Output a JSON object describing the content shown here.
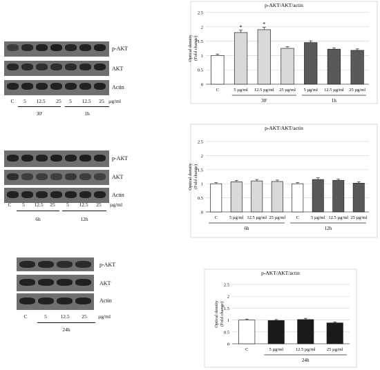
{
  "units": "µg/ml",
  "blots": [
    {
      "rows": [
        "p-AKT",
        "AKT",
        "Actin"
      ],
      "lanes": [
        "C",
        "5",
        "12.5",
        "25",
        "5",
        "12.5",
        "25"
      ],
      "groups": [
        "30'",
        "1h"
      ],
      "intensities": [
        [
          0.55,
          0.75,
          0.85,
          0.9,
          0.8,
          0.85,
          0.9
        ],
        [
          0.8,
          0.75,
          0.7,
          0.7,
          0.75,
          0.8,
          0.85
        ],
        [
          0.85,
          0.85,
          0.85,
          0.85,
          0.85,
          0.85,
          0.85
        ]
      ]
    },
    {
      "rows": [
        "p-AKT",
        "AKT",
        "Actin"
      ],
      "lanes": [
        "C",
        "5",
        "12.5",
        "25",
        "5",
        "12.5",
        "25"
      ],
      "groups": [
        "6h",
        "12h"
      ],
      "intensities": [
        [
          0.85,
          0.9,
          0.85,
          0.9,
          0.85,
          0.9,
          0.85
        ],
        [
          0.7,
          0.55,
          0.55,
          0.55,
          0.6,
          0.55,
          0.5
        ],
        [
          0.85,
          0.85,
          0.85,
          0.85,
          0.85,
          0.85,
          0.85
        ]
      ]
    },
    {
      "rows": [
        "p-AKT",
        "AKT",
        "Actin"
      ],
      "lanes": [
        "C",
        "5",
        "12.5",
        "25"
      ],
      "groups": [
        "24h"
      ],
      "intensities": [
        [
          0.8,
          0.8,
          0.75,
          0.75
        ],
        [
          0.85,
          0.85,
          0.85,
          0.85
        ],
        [
          0.85,
          0.85,
          0.85,
          0.85
        ]
      ]
    }
  ],
  "chart_data": [
    {
      "type": "bar",
      "title": "p-AKT/AKT/actin",
      "ylabel": "Optical density (Fold change)",
      "ylim": [
        0,
        2.5
      ],
      "yticks": [
        0,
        0.5,
        1,
        1.5,
        2,
        2.5
      ],
      "categories": [
        "C",
        "5 µg/ml",
        "12.5 µg/ml",
        "25 µg/ml",
        "5 µg/ml",
        "12.5 µg/ml",
        "25 µg/ml"
      ],
      "values": [
        1.0,
        1.8,
        1.9,
        1.25,
        1.45,
        1.22,
        1.18
      ],
      "errors": [
        0.05,
        0.08,
        0.08,
        0.06,
        0.06,
        0.05,
        0.05
      ],
      "fills": [
        "#ffffff",
        "#d9d9d9",
        "#d9d9d9",
        "#d9d9d9",
        "#595959",
        "#595959",
        "#595959"
      ],
      "significance": [
        "",
        "*",
        "*",
        "",
        "",
        "",
        ""
      ],
      "groups": [
        {
          "label": "30'",
          "from": 1,
          "to": 3
        },
        {
          "label": "1h",
          "from": 4,
          "to": 6
        }
      ],
      "grid": true
    },
    {
      "type": "bar",
      "title": "p-AKT/AKT/actin",
      "ylabel": "Optical density (Fold change)",
      "ylim": [
        0,
        2.5
      ],
      "yticks": [
        0,
        0.5,
        1,
        1.5,
        2,
        2.5
      ],
      "categories": [
        "C",
        "5 µg/ml",
        "12.5 µg/ml",
        "25 µg/ml",
        "C",
        "5 µg/ml",
        "12.5 µg/ml",
        "25 µg/ml"
      ],
      "values": [
        1.0,
        1.07,
        1.1,
        1.08,
        1.0,
        1.15,
        1.12,
        1.02
      ],
      "errors": [
        0.04,
        0.05,
        0.05,
        0.05,
        0.04,
        0.06,
        0.05,
        0.05
      ],
      "fills": [
        "#ffffff",
        "#d9d9d9",
        "#d9d9d9",
        "#d9d9d9",
        "#ffffff",
        "#595959",
        "#595959",
        "#595959"
      ],
      "significance": [
        "",
        "",
        "",
        "",
        "",
        "",
        "",
        ""
      ],
      "groups": [
        {
          "label": "6h",
          "from": 0,
          "to": 3
        },
        {
          "label": "12h",
          "from": 4,
          "to": 7
        }
      ],
      "grid": true
    },
    {
      "type": "bar",
      "title": "p-AKT/AKT/actin",
      "ylabel": "Optical density (Fold change)",
      "ylim": [
        0,
        2.5
      ],
      "yticks": [
        0,
        0.5,
        1,
        1.5,
        2,
        2.5
      ],
      "categories": [
        "C",
        "5 µg/ml",
        "12.5 µg/ml",
        "25 µg/ml"
      ],
      "values": [
        1.0,
        0.98,
        1.02,
        0.88
      ],
      "errors": [
        0.04,
        0.04,
        0.05,
        0.04
      ],
      "fills": [
        "#ffffff",
        "#1a1a1a",
        "#1a1a1a",
        "#1a1a1a"
      ],
      "significance": [
        "",
        "",
        "",
        ""
      ],
      "groups": [
        {
          "label": "24h",
          "from": 1,
          "to": 3
        }
      ],
      "grid": true
    }
  ]
}
